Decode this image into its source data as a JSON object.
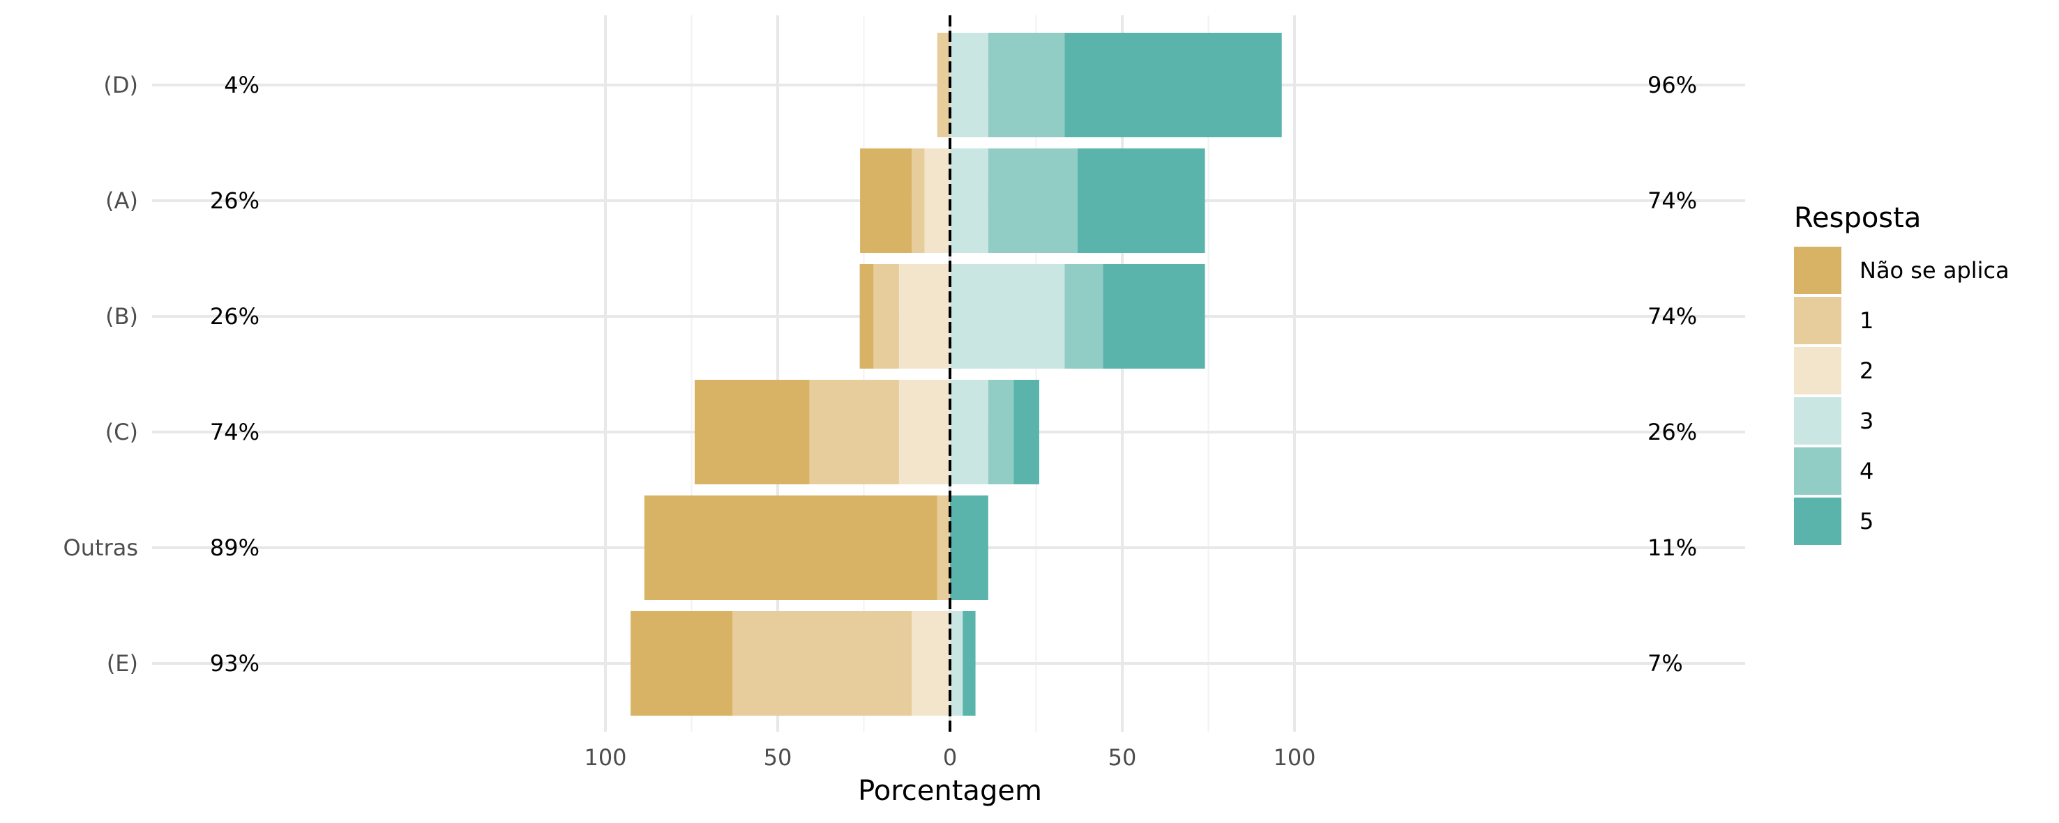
{
  "chart_data": {
    "type": "bar",
    "orientation": "horizontal-diverging",
    "xlabel": "Porcentagem",
    "x_ticks": [
      "100",
      "50",
      "0",
      "50",
      "100"
    ],
    "xlim": [
      -100,
      100
    ],
    "grid": true,
    "legend": {
      "title": "Resposta",
      "position": "right",
      "items": [
        {
          "label": "Não se aplica",
          "color": "#D8B365"
        },
        {
          "label": "1",
          "color": "#E6CD9B"
        },
        {
          "label": "2",
          "color": "#F2E5CC"
        },
        {
          "label": "3",
          "color": "#C9E6E3"
        },
        {
          "label": "4",
          "color": "#91CCC5"
        },
        {
          "label": "5",
          "color": "#5AB4AC"
        }
      ]
    },
    "categories": [
      "(D)",
      "(A)",
      "(B)",
      "(C)",
      "Outras",
      "(E)"
    ],
    "left_totals": [
      "4%",
      "26%",
      "26%",
      "74%",
      "89%",
      "93%"
    ],
    "right_totals": [
      "96%",
      "74%",
      "74%",
      "26%",
      "11%",
      "7%"
    ],
    "series": [
      {
        "name": "Não se aplica",
        "values": [
          0,
          15,
          4,
          33.3,
          85,
          29.6
        ]
      },
      {
        "name": "1",
        "values": [
          3.7,
          3.7,
          7.4,
          26,
          3.7,
          52
        ]
      },
      {
        "name": "2",
        "values": [
          0,
          7.4,
          14.8,
          14.8,
          0,
          11.1
        ]
      },
      {
        "name": "3",
        "values": [
          11.1,
          11.1,
          33.3,
          11.1,
          0,
          3.7
        ]
      },
      {
        "name": "4",
        "values": [
          22.2,
          25.9,
          11.1,
          7.4,
          0,
          0
        ]
      },
      {
        "name": "5",
        "values": [
          63,
          37,
          29.6,
          7.4,
          11.1,
          3.7
        ]
      }
    ]
  }
}
